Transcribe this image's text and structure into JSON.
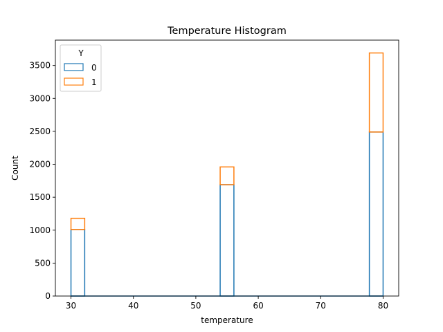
{
  "chart_data": {
    "type": "bar",
    "stacked": true,
    "title": "Temperature Histogram",
    "xlabel": "temperature",
    "ylabel": "Count",
    "xlim": [
      27.5,
      82.5
    ],
    "ylim": [
      0,
      3885
    ],
    "xticks": [
      30,
      40,
      50,
      60,
      70,
      80
    ],
    "yticks": [
      0,
      500,
      1000,
      1500,
      2000,
      2500,
      3000,
      3500
    ],
    "bins": [
      [
        30,
        32.2
      ],
      [
        53.9,
        56.1
      ],
      [
        77.8,
        80
      ]
    ],
    "series": [
      {
        "name": "0",
        "color": "#1f77b4",
        "values": [
          1010,
          1690,
          2490
        ]
      },
      {
        "name": "1",
        "color": "#ff7f0e",
        "values": [
          170,
          270,
          1200
        ]
      }
    ],
    "legend": {
      "title": "Y",
      "placement": "top-left"
    },
    "grid": false
  }
}
